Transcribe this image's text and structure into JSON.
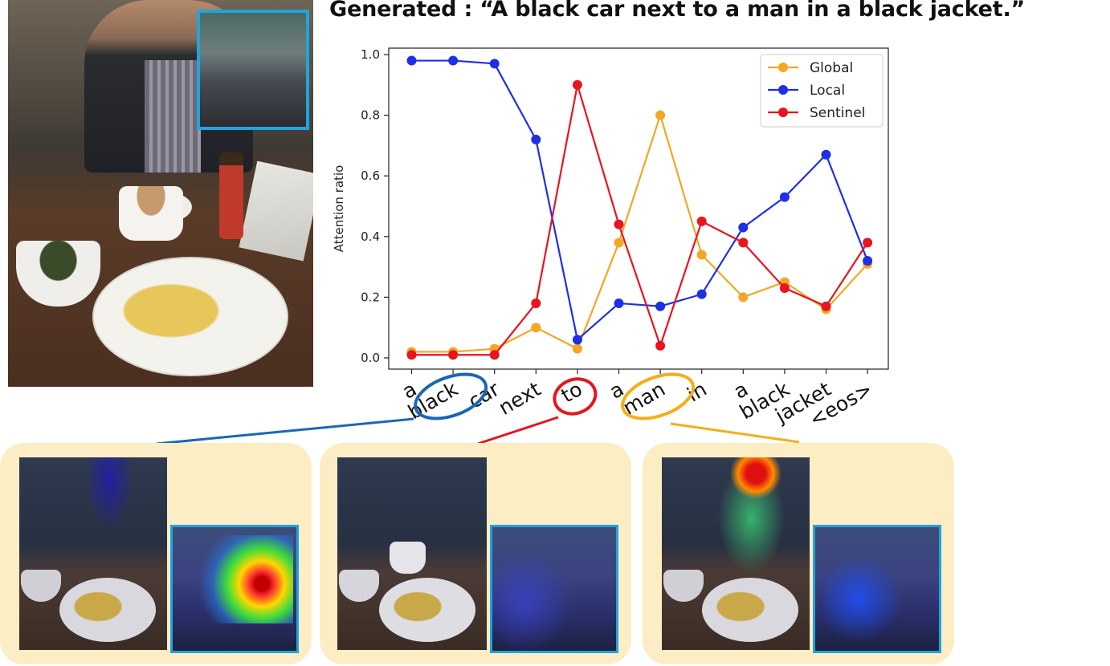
{
  "headline": "Generated : “A black car next to a man in a black jacket.”",
  "colors": {
    "global": "#f5a623",
    "local": "#1f2fe8",
    "sentinel": "#e8141e",
    "highlight_box": "#21a3dd",
    "panel_bg": "#fcedc4"
  },
  "chart_data": {
    "type": "line",
    "title": "",
    "xlabel": "",
    "ylabel": "Attention ratio",
    "ylim": [
      0.0,
      1.0
    ],
    "yticks": [
      "0.0",
      "0.2",
      "0.4",
      "0.6",
      "0.8",
      "1.0"
    ],
    "categories": [
      "a",
      "black",
      "car",
      "next",
      "to",
      "a",
      "man",
      "in",
      "a",
      "black",
      "jacket",
      "<eos>"
    ],
    "legend_position": "top-right",
    "grid": false,
    "series": [
      {
        "name": "Global",
        "color": "#f5a623",
        "values": [
          0.02,
          0.02,
          0.03,
          0.1,
          0.03,
          0.38,
          0.8,
          0.34,
          0.2,
          0.25,
          0.16,
          0.31
        ]
      },
      {
        "name": "Local",
        "color": "#1f2fe8",
        "values": [
          0.98,
          0.98,
          0.97,
          0.72,
          0.06,
          0.18,
          0.17,
          0.21,
          0.43,
          0.53,
          0.67,
          0.32
        ]
      },
      {
        "name": "Sentinel",
        "color": "#e8141e",
        "values": [
          0.01,
          0.01,
          0.01,
          0.18,
          0.9,
          0.44,
          0.04,
          0.45,
          0.38,
          0.23,
          0.17,
          0.38
        ]
      }
    ],
    "circled_words": [
      {
        "index": 1,
        "color": "#1a66b8"
      },
      {
        "index": 4,
        "color": "#e8141e"
      },
      {
        "index": 6,
        "color": "#f5ae17"
      }
    ]
  }
}
